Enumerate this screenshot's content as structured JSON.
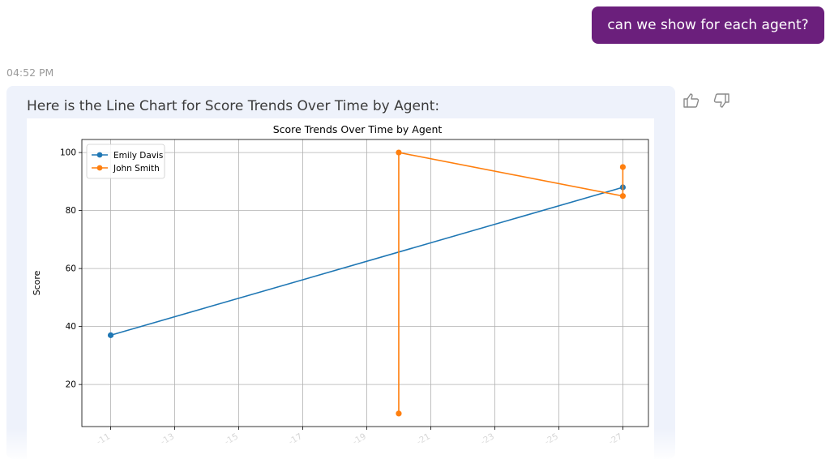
{
  "chat": {
    "user_message": "can we show for each agent?",
    "timestamp": "04:52 PM",
    "assistant_intro": "Here is the Line Chart for Score Trends Over Time by Agent:",
    "colors": {
      "user_bubble": "#6b1f7c",
      "assistant_panel": "#eef2fb"
    },
    "feedback": {
      "like_icon": "thumbs-up-icon",
      "dislike_icon": "thumbs-down-icon"
    }
  },
  "chart_data": {
    "type": "line",
    "title": "Score Trends Over Time by Agent",
    "xlabel": "",
    "ylabel": "Score",
    "x_ticks": [
      "-11",
      "-13",
      "-15",
      "-17",
      "-19",
      "-21",
      "-23",
      "-25",
      "-27"
    ],
    "y_ticks": [
      20,
      40,
      60,
      80,
      100
    ],
    "xlim": [
      10.1,
      27.8
    ],
    "ylim": [
      5.5,
      104.5
    ],
    "grid": true,
    "legend": "top-left",
    "series": [
      {
        "name": "Emily Davis",
        "color": "#1f77b4",
        "points": [
          {
            "x": 11,
            "y": 37
          },
          {
            "x": 27,
            "y": 88
          }
        ]
      },
      {
        "name": "John Smith",
        "color": "#ff7f0e",
        "points": [
          {
            "x": 20,
            "y": 10
          },
          {
            "x": 20,
            "y": 100
          },
          {
            "x": 27,
            "y": 85
          },
          {
            "x": 27,
            "y": 95
          }
        ]
      }
    ]
  }
}
